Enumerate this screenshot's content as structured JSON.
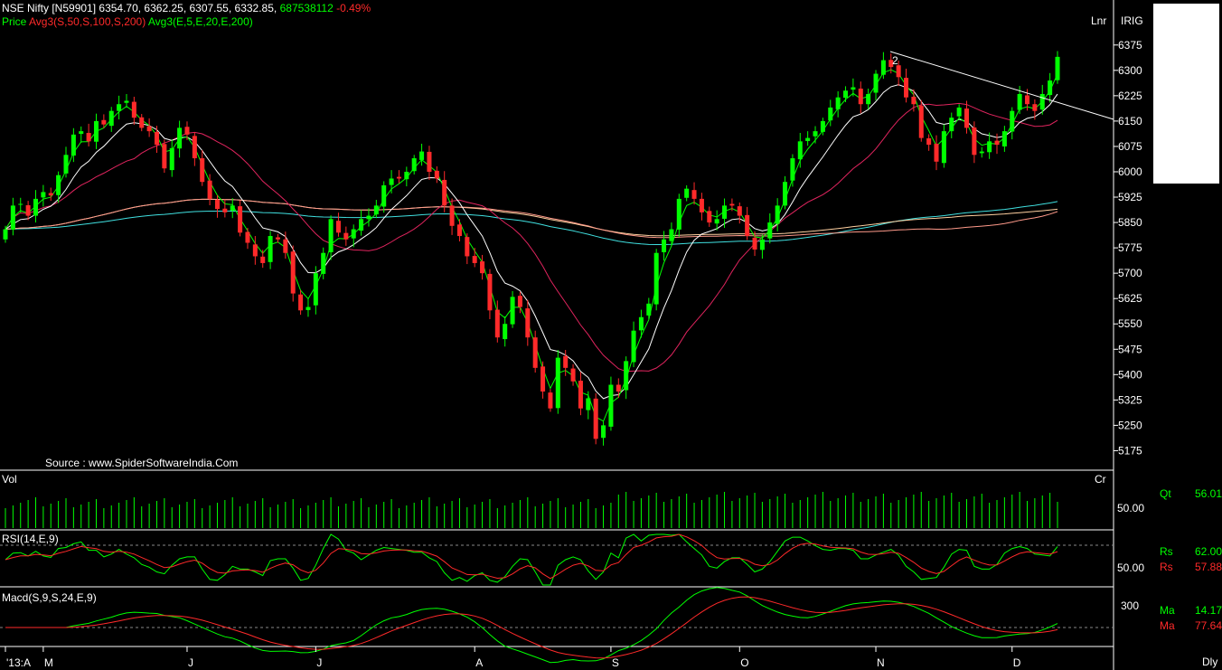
{
  "header": {
    "symbol": "NSE Nifty [N59901]",
    "ohlc": "6354.70, 6362.25, 6307.55, 6332.85,",
    "volume": "687538112",
    "change": "-0.49%",
    "price_label": "Price",
    "avg_s": "Avg3(S,50,S,100,S,200)",
    "avg_e": "Avg3(E,5,E,20,E,200)"
  },
  "corner": {
    "lnr": "Lnr",
    "irig": "IRIG",
    "cr": "Cr",
    "dly": "Dly"
  },
  "source_text": "Source : www.SpiderSoftwareIndia.Com",
  "wave_label": "2",
  "panels": {
    "vol": {
      "title": "Vol",
      "axis_label": "50.00"
    },
    "rsi": {
      "title": "RSI(14,E,9)",
      "axis_label": "50.00"
    },
    "macd": {
      "title": "Macd(S,9,S,24,E,9)",
      "axis_label": "300"
    }
  },
  "readouts": {
    "qt": {
      "label": "Qt",
      "value": "56.01"
    },
    "rs1": {
      "label": "Rs",
      "value": "62.00"
    },
    "rs2": {
      "label": "Rs",
      "value": "57.88"
    },
    "ma1": {
      "label": "Ma",
      "value": "14.17"
    },
    "ma2": {
      "label": "Ma",
      "value": "77.64"
    }
  },
  "colors": {
    "up": "#00ff00",
    "down": "#ff2a2a",
    "ema5": "#00ff00",
    "ema20": "#ffffff",
    "sma50": "#e0245e",
    "sma100": "#ff9a8a",
    "sma200": "#ffd0a0",
    "ema200": "#40e0e0",
    "rsi": "#00ff00",
    "rsi_signal": "#ff2a2a",
    "macd": "#00ff00",
    "macd_signal": "#ff2a2a",
    "volume": "#00ff00",
    "trendline": "#ffffff"
  },
  "chart_data": {
    "type": "candlestick",
    "y_ticks": [
      6375,
      6300,
      6225,
      6150,
      6075,
      6000,
      5925,
      5850,
      5775,
      5700,
      5625,
      5550,
      5475,
      5400,
      5325,
      5250,
      5175
    ],
    "ylim": [
      5120,
      6460
    ],
    "x_labels": [
      "'13:A",
      "M",
      "J",
      "J",
      "A",
      "S",
      "O",
      "N",
      "D"
    ],
    "x_label_index": [
      0,
      5,
      24,
      41,
      62,
      80,
      97,
      115,
      133
    ],
    "close_approx": [
      5830,
      5900,
      5905,
      5870,
      5920,
      5940,
      5930,
      5990,
      6050,
      6110,
      6120,
      6090,
      6150,
      6140,
      6180,
      6200,
      6210,
      6160,
      6130,
      6120,
      6080,
      6010,
      6070,
      6130,
      6110,
      6040,
      5970,
      5920,
      5890,
      5880,
      5900,
      5820,
      5790,
      5750,
      5730,
      5810,
      5800,
      5760,
      5640,
      5590,
      5600,
      5700,
      5760,
      5860,
      5820,
      5800,
      5830,
      5860,
      5870,
      5900,
      5960,
      5980,
      5980,
      6000,
      6040,
      6060,
      6000,
      5980,
      5900,
      5840,
      5810,
      5750,
      5730,
      5700,
      5590,
      5510,
      5550,
      5630,
      5600,
      5510,
      5420,
      5350,
      5300,
      5450,
      5420,
      5380,
      5300,
      5330,
      5210,
      5250,
      5370,
      5350,
      5440,
      5530,
      5570,
      5610,
      5760,
      5800,
      5830,
      5920,
      5950,
      5920,
      5880,
      5850,
      5860,
      5900,
      5900,
      5870,
      5810,
      5770,
      5800,
      5850,
      5900,
      5970,
      6040,
      6090,
      6100,
      6120,
      6150,
      6190,
      6220,
      6240,
      6250,
      6200,
      6230,
      6290,
      6330,
      6310,
      6280,
      6220,
      6200,
      6100,
      6080,
      6030,
      6120,
      6160,
      6190,
      6130,
      6050,
      6060,
      6090,
      6080,
      6120,
      6180,
      6230,
      6200,
      6180,
      6230,
      6270,
      6340
    ]
  }
}
